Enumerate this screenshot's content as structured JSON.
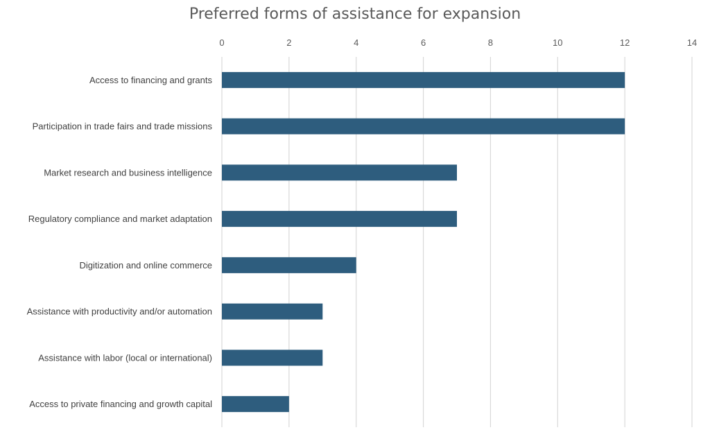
{
  "chart_data": {
    "type": "bar",
    "orientation": "horizontal",
    "title": "Preferred forms of assistance for expansion",
    "categories": [
      "Access to financing and grants",
      "Participation in trade fairs and trade missions",
      "Market research and business intelligence",
      "Regulatory compliance and market adaptation",
      "Digitization and online commerce",
      "Assistance with productivity and/or automation",
      "Assistance with labor (local or international)",
      "Access to private financing and growth capital"
    ],
    "values": [
      12,
      12,
      7,
      7,
      4,
      3,
      3,
      2
    ],
    "xlim": [
      0,
      14
    ],
    "xticks": [
      0,
      2,
      4,
      6,
      8,
      10,
      12,
      14
    ],
    "x_axis_position": "top",
    "grid": true,
    "bar_color": "#2e5d7e",
    "grid_color": "#d9d9d9"
  }
}
